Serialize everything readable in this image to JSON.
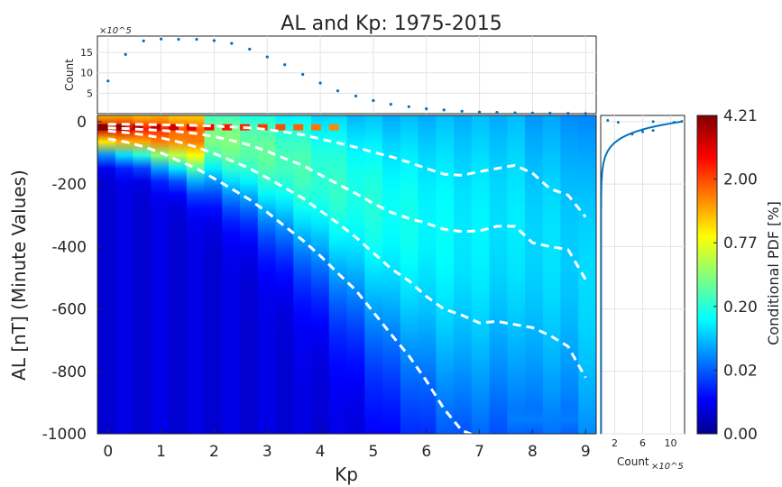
{
  "figure": {
    "title": "AL and Kp: 1975-2015"
  },
  "chart_data": [
    {
      "type": "heatmap",
      "name": "main",
      "xlabel": "Kp",
      "ylabel": "AL [nT] (Minute Values)",
      "xlim": [
        -0.2,
        9.2
      ],
      "ylim": [
        -1000,
        20
      ],
      "xticks": [
        0,
        1,
        2,
        3,
        4,
        5,
        6,
        7,
        8,
        9
      ],
      "yticks": [
        0,
        -200,
        -400,
        -600,
        -800,
        -1000
      ],
      "kp_bins": [
        0,
        0.33,
        0.67,
        1,
        1.33,
        1.67,
        2,
        2.33,
        2.67,
        3,
        3.33,
        3.67,
        4,
        4.33,
        4.67,
        5,
        5.33,
        5.67,
        6,
        6.33,
        6.67,
        7,
        7.33,
        7.67,
        8,
        8.33,
        8.67,
        9
      ],
      "quantile_curves": [
        {
          "y": [
            -8,
            -8,
            -9,
            -10,
            -11,
            -12,
            -14,
            -17,
            -20,
            -25,
            -33,
            -42,
            -55,
            -68,
            -82,
            -98,
            -112,
            -130,
            -150,
            -168,
            -172,
            -160,
            -150,
            -140,
            -165,
            -215,
            -235,
            -305
          ]
        },
        {
          "y": [
            -20,
            -22,
            -25,
            -28,
            -32,
            -38,
            -48,
            -60,
            -75,
            -95,
            -118,
            -140,
            -170,
            -200,
            -230,
            -262,
            -290,
            -310,
            -325,
            -345,
            -352,
            -350,
            -335,
            -335,
            -388,
            -400,
            -410,
            -505
          ]
        },
        {
          "y": [
            -30,
            -35,
            -42,
            -52,
            -65,
            -82,
            -102,
            -125,
            -150,
            -180,
            -212,
            -245,
            -285,
            -325,
            -370,
            -420,
            -470,
            -510,
            -560,
            -600,
            -620,
            -645,
            -640,
            -650,
            -660,
            -685,
            -720,
            -820
          ]
        },
        {
          "y": [
            -55,
            -65,
            -80,
            -100,
            -125,
            -150,
            -182,
            -215,
            -250,
            -290,
            -335,
            -380,
            -430,
            -485,
            -540,
            -610,
            -680,
            -750,
            -830,
            -920,
            -990,
            -1010,
            -1020,
            -1030,
            -1040,
            -1050,
            -1060,
            -1070
          ]
        }
      ],
      "grid": true
    },
    {
      "type": "scatter",
      "name": "top-marginal",
      "ylabel": "Count",
      "y_exponent": "×10^5",
      "ylim": [
        0,
        19
      ],
      "yticks": [
        5,
        10,
        15
      ],
      "x": [
        0,
        0.33,
        0.67,
        1,
        1.33,
        1.67,
        2,
        2.33,
        2.67,
        3,
        3.33,
        3.67,
        4,
        4.33,
        4.67,
        5,
        5.33,
        5.67,
        6,
        6.33,
        6.67,
        7,
        7.33,
        7.67,
        8,
        8.33,
        8.67,
        9
      ],
      "y": [
        8,
        14.5,
        17.8,
        18.3,
        18.2,
        18.2,
        17.9,
        17.2,
        15.8,
        13.9,
        12.0,
        9.6,
        7.5,
        5.6,
        4.3,
        3.2,
        2.3,
        1.7,
        1.2,
        0.9,
        0.6,
        0.4,
        0.3,
        0.2,
        0.15,
        0.1,
        0.08,
        0.05
      ],
      "grid": true
    },
    {
      "type": "line",
      "name": "right-marginal",
      "xlabel": "Count",
      "x_exponent": "×10^5",
      "xlim": [
        0,
        12
      ],
      "xticks": [
        2,
        6,
        10
      ],
      "grid": true
    },
    {
      "type": "colorbar",
      "label": "Conditional PDF [%]",
      "tick_labels": [
        "4.21",
        "2.00",
        "0.77",
        "0.20",
        "0.02",
        "0.00"
      ],
      "colormap": "jet",
      "colors": [
        "#00008f",
        "#0000ff",
        "#0080ff",
        "#00ffff",
        "#80ff80",
        "#ffff00",
        "#ff8000",
        "#ff0000",
        "#800000"
      ]
    }
  ]
}
